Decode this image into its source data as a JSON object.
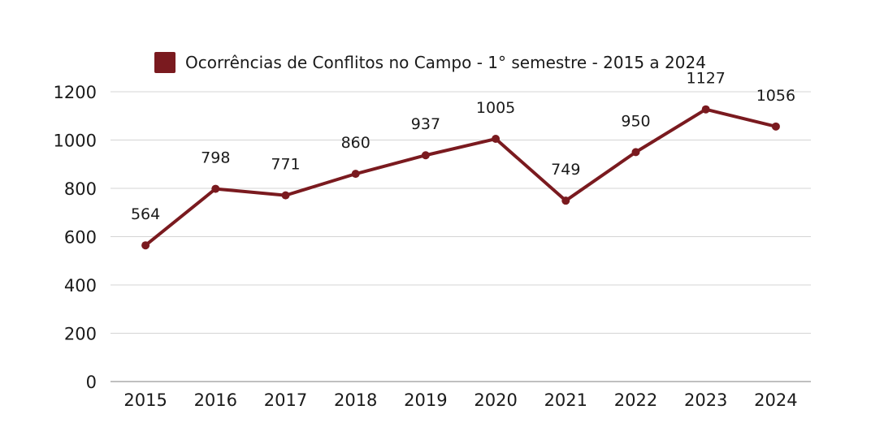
{
  "chart_data": {
    "type": "line",
    "title": "",
    "xlabel": "",
    "ylabel": "",
    "categories": [
      "2015",
      "2016",
      "2017",
      "2018",
      "2019",
      "2020",
      "2021",
      "2022",
      "2023",
      "2024"
    ],
    "series": [
      {
        "name": "Ocorrências de Conflitos no Campo - 1° semestre - 2015 a 2024",
        "values": [
          564,
          798,
          771,
          860,
          937,
          1005,
          749,
          950,
          1127,
          1056
        ],
        "color": "#7a1a1f"
      }
    ],
    "data_labels": [
      "564",
      "798",
      "771",
      "860",
      "937",
      "1005",
      "749",
      "950",
      "1127",
      "1056"
    ],
    "ylim": [
      0,
      1200
    ],
    "y_ticks": [
      0,
      200,
      400,
      600,
      800,
      1000,
      1200
    ],
    "y_tick_labels": [
      "0",
      "200",
      "400",
      "600",
      "800",
      "1000",
      "1200"
    ],
    "grid": true,
    "legend_position": "top"
  }
}
